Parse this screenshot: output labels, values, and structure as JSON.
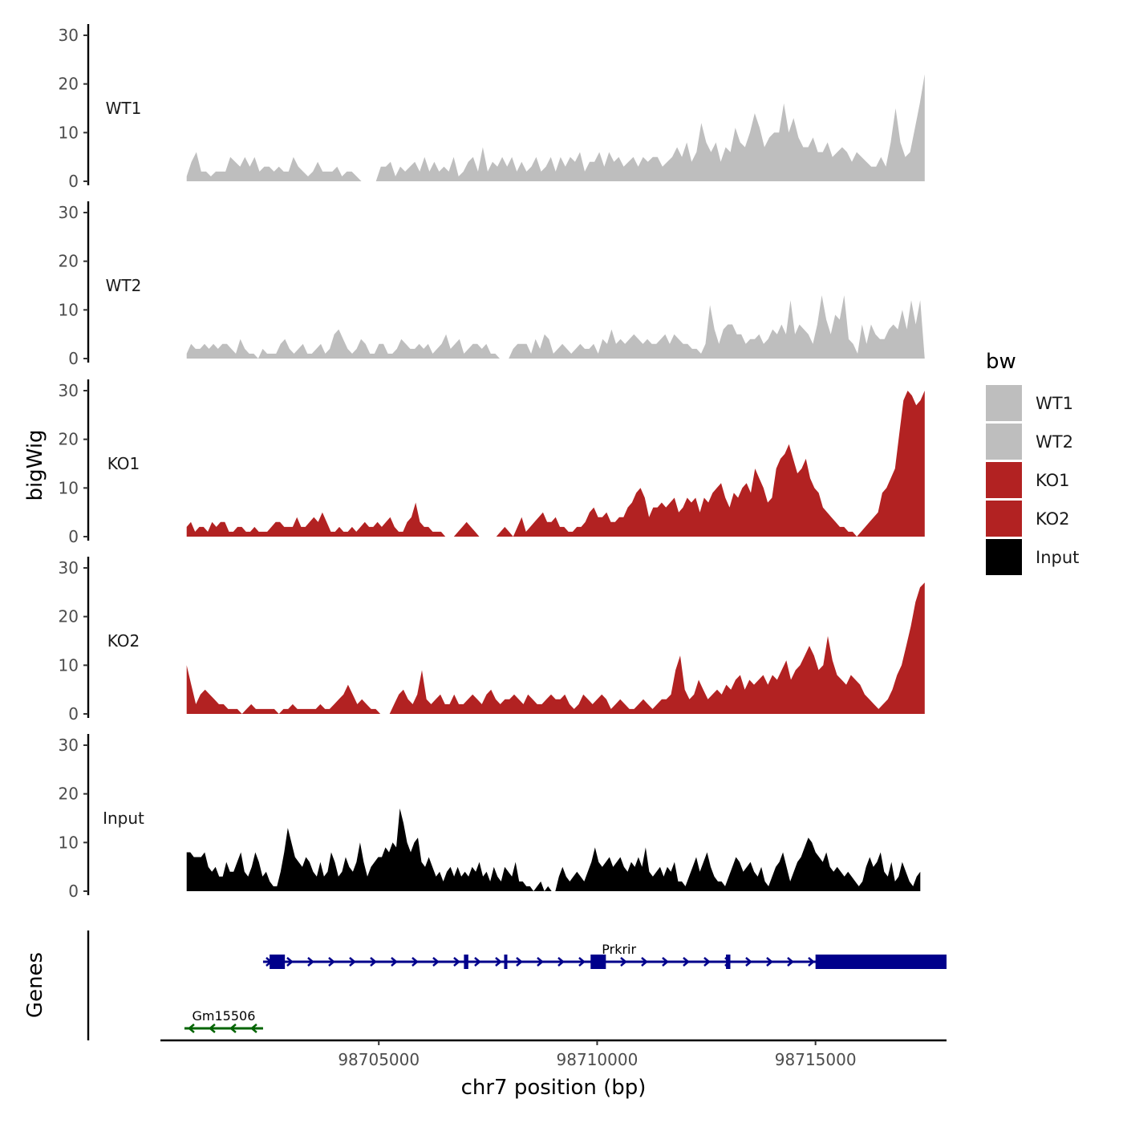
{
  "chart_data": {
    "type": "area",
    "ylabel": "bigWig",
    "genes_label": "Genes",
    "xlabel": "chr7 position (bp)",
    "xlim": [
      98700000,
      98718000
    ],
    "xticks": [
      98705000,
      98710000,
      98715000
    ],
    "ylim": [
      0,
      30
    ],
    "yticks": [
      0,
      10,
      20,
      30
    ],
    "legend": {
      "title": "bw",
      "position": "right",
      "entries": [
        {
          "label": "WT1",
          "color": "#BEBEBE"
        },
        {
          "label": "WT2",
          "color": "#BEBEBE"
        },
        {
          "label": "KO1",
          "color": "#B22222"
        },
        {
          "label": "KO2",
          "color": "#B22222"
        },
        {
          "label": "Input",
          "color": "#000000"
        }
      ]
    },
    "series": [
      {
        "name": "WT1",
        "color": "#BEBEBE",
        "start": 98700600,
        "end": 98717500,
        "values": [
          1,
          4,
          6,
          2,
          2,
          1,
          2,
          2,
          2,
          5,
          4,
          3,
          5,
          3,
          5,
          2,
          3,
          3,
          2,
          3,
          2,
          2,
          5,
          3,
          2,
          1,
          2,
          4,
          2,
          2,
          2,
          3,
          1,
          2,
          2,
          1,
          0,
          0,
          0,
          0,
          3,
          3,
          4,
          1,
          3,
          2,
          3,
          4,
          2,
          5,
          2,
          4,
          2,
          3,
          2,
          5,
          1,
          2,
          4,
          5,
          2,
          7,
          2,
          4,
          3,
          5,
          3,
          5,
          2,
          4,
          2,
          3,
          5,
          2,
          3,
          5,
          2,
          5,
          3,
          5,
          4,
          6,
          2,
          4,
          4,
          6,
          3,
          6,
          4,
          5,
          3,
          4,
          5,
          3,
          5,
          4,
          5,
          5,
          3,
          4,
          5,
          7,
          5,
          8,
          4,
          6,
          12,
          8,
          6,
          8,
          4,
          7,
          6,
          11,
          8,
          7,
          10,
          14,
          11,
          7,
          9,
          10,
          10,
          16,
          10,
          13,
          9,
          7,
          7,
          9,
          6,
          6,
          8,
          5,
          6,
          7,
          6,
          4,
          6,
          5,
          4,
          3,
          3,
          5,
          3,
          8,
          15,
          8,
          5,
          6,
          11,
          16,
          22
        ]
      },
      {
        "name": "WT2",
        "color": "#BEBEBE",
        "start": 98700600,
        "end": 98717500,
        "values": [
          1,
          3,
          2,
          2,
          3,
          2,
          3,
          2,
          3,
          3,
          2,
          1,
          4,
          2,
          1,
          1,
          0,
          2,
          1,
          1,
          1,
          3,
          4,
          2,
          1,
          2,
          3,
          1,
          1,
          2,
          3,
          1,
          2,
          5,
          6,
          4,
          2,
          1,
          2,
          4,
          3,
          1,
          1,
          3,
          3,
          1,
          1,
          2,
          4,
          3,
          2,
          2,
          3,
          2,
          3,
          1,
          2,
          3,
          5,
          2,
          3,
          4,
          1,
          2,
          3,
          3,
          2,
          3,
          1,
          1,
          0,
          0,
          0,
          2,
          3,
          3,
          3,
          1,
          4,
          2,
          5,
          4,
          1,
          2,
          3,
          2,
          1,
          2,
          3,
          2,
          2,
          3,
          1,
          4,
          3,
          6,
          3,
          4,
          3,
          4,
          5,
          4,
          3,
          4,
          3,
          3,
          4,
          5,
          3,
          5,
          4,
          3,
          3,
          2,
          2,
          1,
          3,
          11,
          6,
          3,
          6,
          7,
          7,
          5,
          5,
          3,
          4,
          4,
          5,
          3,
          4,
          6,
          5,
          7,
          5,
          12,
          5,
          7,
          6,
          5,
          3,
          7,
          13,
          8,
          5,
          9,
          8,
          13,
          4,
          3,
          1,
          7,
          3,
          7,
          5,
          4,
          4,
          6,
          7,
          6,
          10,
          6,
          12,
          7,
          12,
          0
        ]
      },
      {
        "name": "KO1",
        "color": "#B22222",
        "start": 98700600,
        "end": 98717500,
        "values": [
          2,
          3,
          1,
          2,
          2,
          1,
          3,
          2,
          3,
          3,
          1,
          1,
          2,
          2,
          1,
          1,
          2,
          1,
          1,
          1,
          2,
          3,
          3,
          2,
          2,
          2,
          4,
          2,
          2,
          3,
          4,
          3,
          5,
          3,
          1,
          1,
          2,
          1,
          1,
          2,
          1,
          2,
          3,
          2,
          2,
          3,
          2,
          3,
          4,
          2,
          1,
          1,
          3,
          4,
          7,
          3,
          2,
          2,
          1,
          1,
          1,
          0,
          0,
          0,
          1,
          2,
          3,
          2,
          1,
          0,
          0,
          0,
          0,
          0,
          1,
          2,
          1,
          0,
          2,
          4,
          1,
          2,
          3,
          4,
          5,
          3,
          3,
          4,
          2,
          2,
          1,
          1,
          2,
          2,
          3,
          5,
          6,
          4,
          4,
          5,
          3,
          3,
          4,
          4,
          6,
          7,
          9,
          10,
          8,
          4,
          6,
          6,
          7,
          6,
          7,
          8,
          5,
          6,
          8,
          7,
          8,
          5,
          8,
          7,
          9,
          10,
          11,
          8,
          6,
          9,
          8,
          10,
          11,
          9,
          14,
          12,
          10,
          7,
          8,
          14,
          16,
          17,
          19,
          16,
          13,
          14,
          16,
          12,
          10,
          9,
          6,
          5,
          4,
          3,
          2,
          2,
          1,
          1,
          0,
          1,
          2,
          3,
          4,
          5,
          9,
          10,
          12,
          14,
          21,
          28,
          30,
          29,
          27,
          28,
          30
        ]
      },
      {
        "name": "KO2",
        "color": "#B22222",
        "start": 98700600,
        "end": 98717500,
        "values": [
          10,
          6,
          2,
          4,
          5,
          4,
          3,
          2,
          2,
          1,
          1,
          1,
          0,
          1,
          2,
          1,
          1,
          1,
          1,
          1,
          0,
          1,
          1,
          2,
          1,
          1,
          1,
          1,
          1,
          2,
          1,
          1,
          2,
          3,
          4,
          6,
          4,
          2,
          3,
          2,
          1,
          1,
          0,
          0,
          0,
          2,
          4,
          5,
          3,
          2,
          4,
          9,
          3,
          2,
          3,
          4,
          2,
          2,
          4,
          2,
          2,
          3,
          4,
          3,
          2,
          4,
          5,
          3,
          2,
          3,
          3,
          4,
          3,
          2,
          4,
          3,
          2,
          2,
          3,
          4,
          3,
          3,
          4,
          2,
          1,
          2,
          4,
          3,
          2,
          3,
          4,
          3,
          1,
          2,
          3,
          2,
          1,
          1,
          2,
          3,
          2,
          1,
          2,
          3,
          3,
          4,
          9,
          12,
          5,
          3,
          4,
          7,
          5,
          3,
          4,
          5,
          4,
          6,
          5,
          7,
          8,
          5,
          7,
          6,
          7,
          8,
          6,
          8,
          7,
          9,
          11,
          7,
          9,
          10,
          12,
          14,
          12,
          9,
          10,
          16,
          11,
          8,
          7,
          6,
          8,
          7,
          6,
          4,
          3,
          2,
          1,
          2,
          3,
          5,
          8,
          10,
          14,
          18,
          23,
          26,
          27
        ]
      },
      {
        "name": "Input",
        "color": "#000000",
        "start": 98700600,
        "end": 98717400,
        "values": [
          8,
          8,
          7,
          7,
          7,
          8,
          5,
          4,
          5,
          3,
          3,
          6,
          4,
          4,
          6,
          8,
          4,
          3,
          5,
          8,
          6,
          3,
          4,
          2,
          1,
          1,
          4,
          8,
          13,
          10,
          7,
          6,
          5,
          7,
          6,
          4,
          3,
          6,
          3,
          4,
          8,
          6,
          3,
          4,
          7,
          5,
          4,
          6,
          10,
          6,
          3,
          5,
          6,
          7,
          7,
          9,
          8,
          10,
          9,
          17,
          14,
          10,
          8,
          10,
          11,
          6,
          5,
          7,
          5,
          3,
          4,
          2,
          4,
          5,
          3,
          5,
          3,
          4,
          3,
          5,
          4,
          6,
          3,
          4,
          2,
          5,
          3,
          2,
          5,
          4,
          3,
          6,
          2,
          2,
          1,
          1,
          0,
          1,
          2,
          0,
          1,
          0,
          0,
          3,
          5,
          3,
          2,
          3,
          4,
          3,
          2,
          4,
          6,
          9,
          6,
          5,
          6,
          7,
          5,
          6,
          7,
          5,
          4,
          6,
          5,
          7,
          5,
          9,
          4,
          3,
          4,
          5,
          3,
          5,
          4,
          6,
          2,
          2,
          1,
          3,
          5,
          7,
          4,
          6,
          8,
          5,
          3,
          2,
          2,
          1,
          3,
          5,
          7,
          6,
          4,
          5,
          6,
          4,
          3,
          5,
          2,
          1,
          3,
          5,
          6,
          8,
          5,
          2,
          4,
          6,
          7,
          9,
          11,
          10,
          8,
          7,
          6,
          8,
          5,
          4,
          5,
          4,
          3,
          4,
          3,
          2,
          1,
          2,
          5,
          7,
          5,
          6,
          8,
          4,
          3,
          6,
          2,
          3,
          6,
          4,
          2,
          1,
          3,
          4
        ]
      }
    ],
    "genes": [
      {
        "name": "Gm15506",
        "color": "#006400",
        "strand": "-",
        "start": 98700550,
        "end": 98702350,
        "exons": [],
        "row": 2
      },
      {
        "name": "Prkrir",
        "color": "#00008B",
        "strand": "+",
        "start": 98702350,
        "end": 98718000,
        "row": 1,
        "exons": [
          [
            98702500,
            98702850
          ],
          [
            98706950,
            98707050
          ],
          [
            98707870,
            98707940
          ],
          [
            98709850,
            98710200
          ],
          [
            98712950,
            98713050
          ],
          [
            98715000,
            98718000
          ]
        ]
      }
    ]
  }
}
